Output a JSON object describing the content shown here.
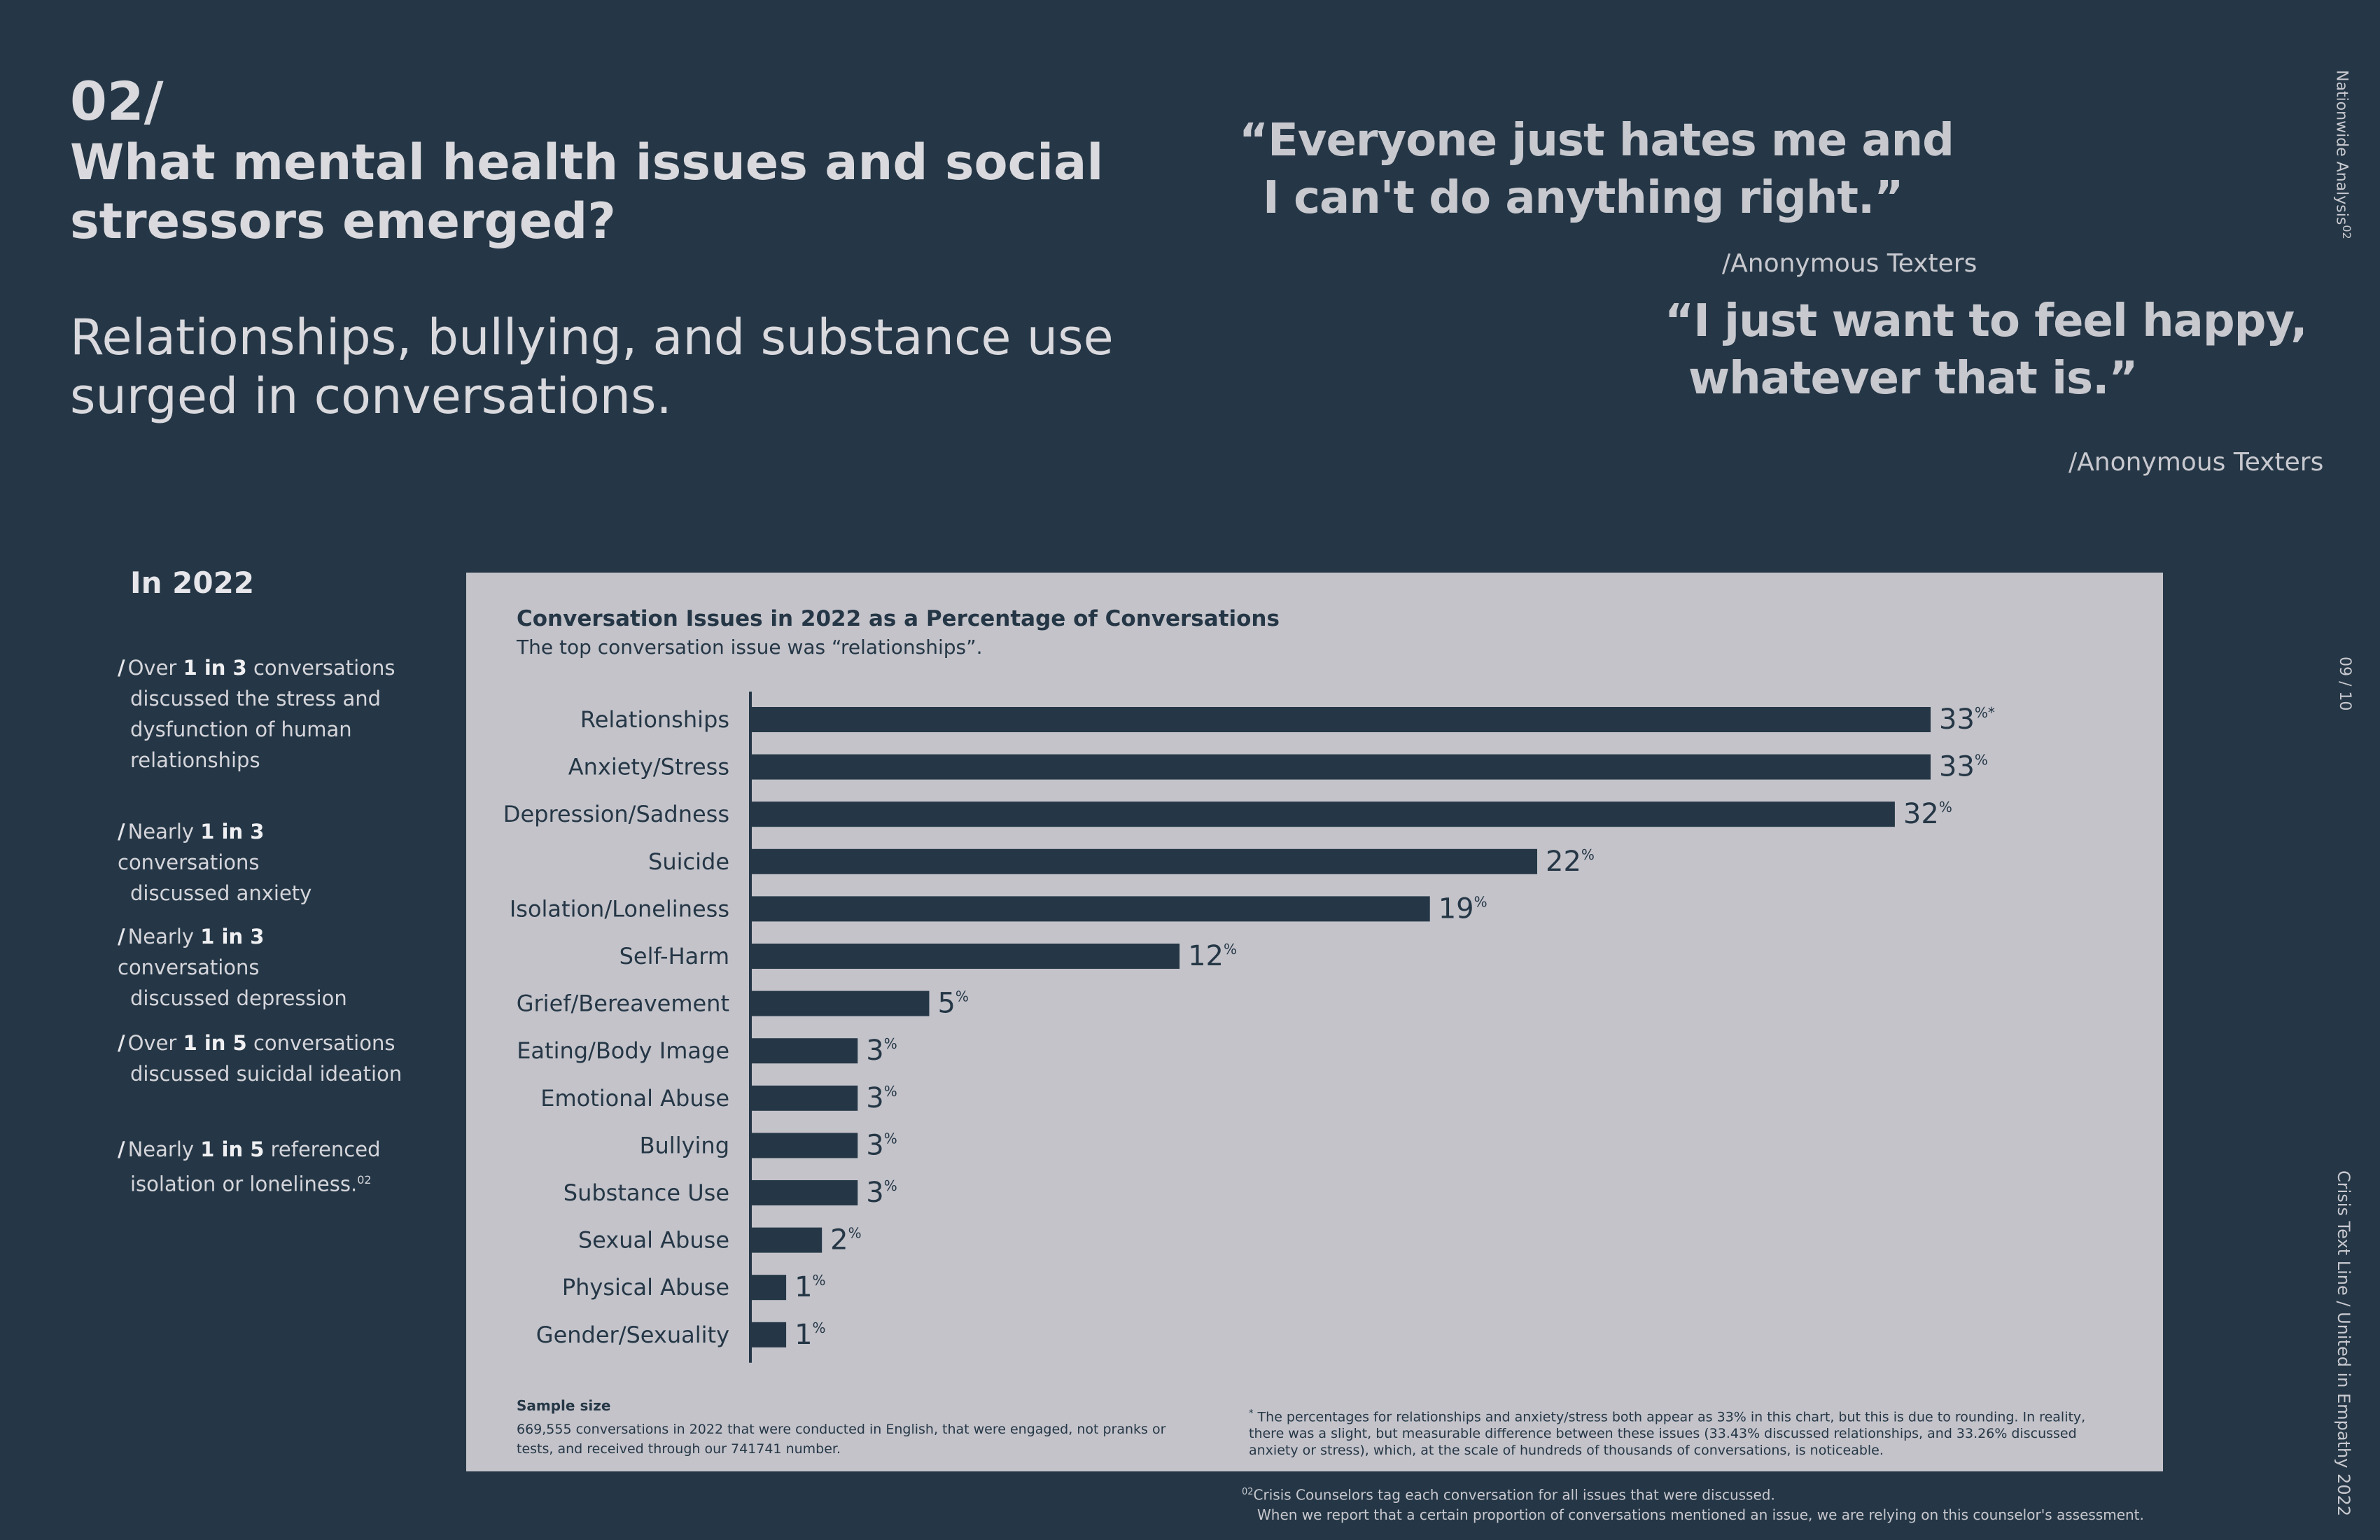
{
  "header": {
    "section_number": "02/",
    "title": "What mental health issues and social stressors emerged?",
    "subtitle": "Relationships, bullying, and substance use surged in conversations."
  },
  "quotes": [
    {
      "line1": "“Everyone just hates me and",
      "line2": "I can't do anything right.”",
      "attribution": "/Anonymous Texters"
    },
    {
      "line1": "“I just want to feel happy,",
      "line2": "whatever that is.”",
      "attribution": "/Anonymous Texters"
    }
  ],
  "sidebar": {
    "analysis_label": "Nationwide Analysis",
    "analysis_sup": "02",
    "page": "09 / 10",
    "org": "Crisis Text Line  /  United in Empathy 2022"
  },
  "stats": {
    "year_heading": "In 2022",
    "items": [
      {
        "prefix": "Over",
        "bold": "1 in 3",
        "rest_line1": "conversations",
        "rest": "discussed the stress and dysfunction of human relationships"
      },
      {
        "prefix": "Nearly",
        "bold": "1 in 3",
        "rest_line1": "conversations",
        "rest": "discussed anxiety"
      },
      {
        "prefix": "Nearly",
        "bold": "1 in 3",
        "rest_line1": "conversations",
        "rest": "discussed depression"
      },
      {
        "prefix": "Over",
        "bold": "1 in 5",
        "rest_line1": "conversations",
        "rest": "discussed suicidal ideation"
      },
      {
        "prefix": "Nearly",
        "bold": "1 in 5",
        "rest_line1": "referenced",
        "rest": "isolation or loneliness.",
        "sup": "02"
      }
    ]
  },
  "chart_data": {
    "type": "bar",
    "orientation": "horizontal",
    "title": "Conversation Issues in 2022 as a Percentage of Conversations",
    "subtitle": "The top conversation issue was “relationships”.",
    "categories": [
      "Relationships",
      "Anxiety/Stress",
      "Depression/Sadness",
      "Suicide",
      "Isolation/Loneliness",
      "Self-Harm",
      "Grief/Bereavement",
      "Eating/Body Image",
      "Emotional Abuse",
      "Bullying",
      "Substance Use",
      "Sexual Abuse",
      "Physical Abuse",
      "Gender/Sexuality"
    ],
    "values": [
      33,
      33,
      32,
      22,
      19,
      12,
      5,
      3,
      3,
      3,
      3,
      2,
      1,
      1
    ],
    "value_suffix": "%",
    "value_marks": [
      "*",
      "",
      "",
      "",
      "",
      "",
      "",
      "",
      "",
      "",
      "",
      "",
      "",
      ""
    ],
    "xlim": [
      0,
      33
    ],
    "bar_color": "#253746",
    "background_color": "#c4c3ca"
  },
  "notes": {
    "sample_label": "Sample size",
    "sample_text": "669,555 conversations in 2022 that were conducted in English, that were engaged, not pranks or tests, and received through our 741741 number.",
    "footnote_1_mark": "*",
    "footnote_1": "The percentages for relationships and anxiety/stress both appear as 33% in this chart, but this is due to rounding. In reality, there was a slight, but measurable difference between these issues (33.43% discussed relationships, and 33.26% discussed anxiety or stress), which, at the scale of hundreds of thousands of conversations, is noticeable.",
    "footnote_2_mark": "02",
    "footnote_2_line1": "Crisis Counselors tag each conversation for all issues that were discussed.",
    "footnote_2_line2": "When we report that a certain proportion of conversations mentioned an issue, we are relying on this counselor's assessment."
  }
}
